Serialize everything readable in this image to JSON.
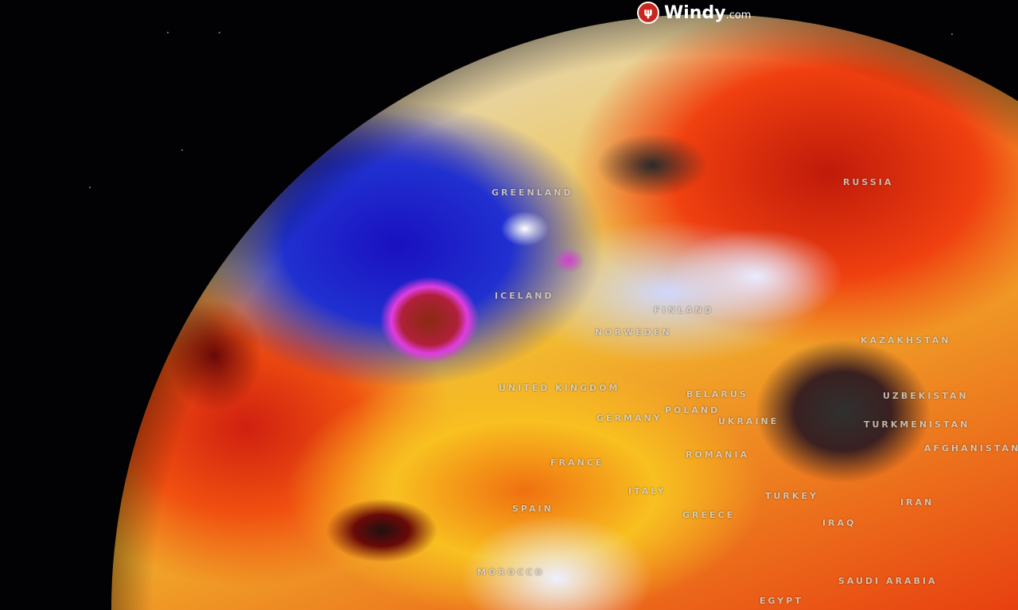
{
  "brand": {
    "name": "Windy",
    "suffix": ".com",
    "logo_color": "#c8261e"
  },
  "map": {
    "type": "globe weather overlay",
    "labels": [
      {
        "id": "greenland",
        "text": "GREENLAND"
      },
      {
        "id": "iceland",
        "text": "ICELAND"
      },
      {
        "id": "russia",
        "text": "RUSSIA"
      },
      {
        "id": "finland",
        "text": "FINLAND"
      },
      {
        "id": "norway-sweden",
        "text": "NORWEDEN"
      },
      {
        "id": "united-kingdom",
        "text": "UNITED KINGDOM"
      },
      {
        "id": "kazakhstan",
        "text": "KAZAKHSTAN"
      },
      {
        "id": "belarus",
        "text": "BELARUS"
      },
      {
        "id": "uzbekistan",
        "text": "UZBEKISTAN"
      },
      {
        "id": "poland",
        "text": "POLAND"
      },
      {
        "id": "germany",
        "text": "GERMANY"
      },
      {
        "id": "ukraine",
        "text": "UKRAINE"
      },
      {
        "id": "turkmenistan",
        "text": "TURKMENISTAN"
      },
      {
        "id": "afghanistan",
        "text": "AFGHANISTAN"
      },
      {
        "id": "france",
        "text": "FRANCE"
      },
      {
        "id": "romania",
        "text": "ROMANIA"
      },
      {
        "id": "spain",
        "text": "SPAIN"
      },
      {
        "id": "italy",
        "text": "ITALY"
      },
      {
        "id": "turkey",
        "text": "TURKEY"
      },
      {
        "id": "iran",
        "text": "IRAN"
      },
      {
        "id": "greece",
        "text": "GREECE"
      },
      {
        "id": "iraq",
        "text": "IRAQ"
      },
      {
        "id": "morocco",
        "text": "MOROCCO"
      },
      {
        "id": "saudi-arabia",
        "text": "SAUDI ARABIA"
      },
      {
        "id": "egypt",
        "text": "EGYPT"
      }
    ]
  }
}
